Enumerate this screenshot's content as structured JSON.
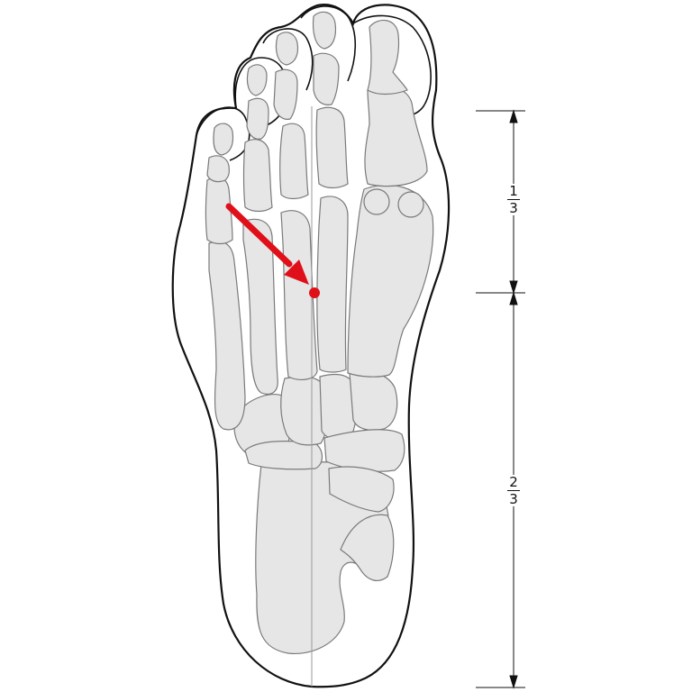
{
  "diagram": {
    "subject": "foot-skeleton-plantar-view",
    "colors": {
      "outline": "#111111",
      "bone_fill": "#e6e6e6",
      "bone_stroke": "#7a7a7a",
      "axis_line": "#9a9a9a",
      "arrow": "#e0101a"
    },
    "dimension_labels": {
      "upper": {
        "numerator": "1",
        "denominator": "3"
      },
      "lower": {
        "numerator": "2",
        "denominator": "3"
      }
    }
  }
}
